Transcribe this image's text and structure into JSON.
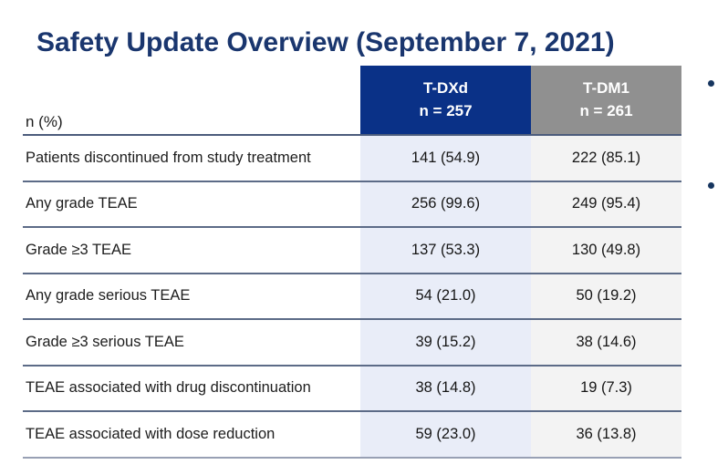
{
  "slide": {
    "title": "Safety Update Overview (September 7, 2021)"
  },
  "table": {
    "row_header_label": "n (%)",
    "columns": [
      {
        "name": "T-DXd",
        "n_label": "n = 257"
      },
      {
        "name": "T-DM1",
        "n_label": "n = 261"
      }
    ],
    "rows": [
      {
        "label": "Patients discontinued from study treatment",
        "tdxd": "141 (54.9)",
        "tdm1": "222 (85.1)"
      },
      {
        "label": "Any grade TEAE",
        "tdxd": "256 (99.6)",
        "tdm1": "249 (95.4)"
      },
      {
        "label": "Grade ≥3 TEAE",
        "tdxd": "137 (53.3)",
        "tdm1": "130 (49.8)"
      },
      {
        "label": "Any grade serious TEAE",
        "tdxd": "54 (21.0)",
        "tdm1": "50 (19.2)"
      },
      {
        "label": "Grade ≥3 serious TEAE",
        "tdxd": "39 (15.2)",
        "tdm1": "38 (14.6)"
      },
      {
        "label": "TEAE associated with drug discontinuation",
        "tdxd": "38 (14.8)",
        "tdm1": "19 (7.3)"
      },
      {
        "label": "TEAE associated with dose reduction",
        "tdxd": "59 (23.0)",
        "tdm1": "36 (13.8)"
      }
    ]
  },
  "side_notes": {
    "bullets": [
      {
        "icon": "bullet-icon"
      },
      {
        "icon": "bullet-icon"
      }
    ]
  },
  "colors": {
    "title_text": "#1a366e",
    "tdxd_header_bg": "#0a3187",
    "tdm1_header_bg": "#909090",
    "tdxd_column_bg": "#e9edf8",
    "tdm1_column_bg": "#f3f3f3",
    "row_separator": "#5c6b87",
    "bullet": "#16355f"
  }
}
